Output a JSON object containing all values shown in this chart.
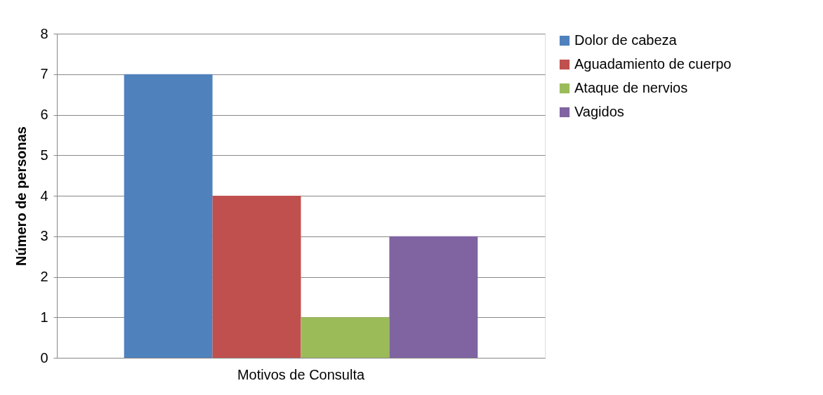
{
  "chart_data": {
    "type": "bar",
    "ylabel": "Número de personas",
    "categories": [
      "Motivos de Consulta"
    ],
    "series": [
      {
        "name": "Dolor de cabeza",
        "color": "#4f81bd",
        "values": [
          7
        ]
      },
      {
        "name": "Aguadamiento de cuerpo",
        "color": "#c0504d",
        "values": [
          4
        ]
      },
      {
        "name": "Ataque de nervios",
        "color": "#9bbb59",
        "values": [
          1
        ]
      },
      {
        "name": "Vagidos",
        "color": "#8064a2",
        "values": [
          3
        ]
      }
    ],
    "ylim": [
      0,
      8
    ],
    "yticks": [
      0,
      1,
      2,
      3,
      4,
      5,
      6,
      7,
      8
    ],
    "grid": "y",
    "legend": "right"
  }
}
